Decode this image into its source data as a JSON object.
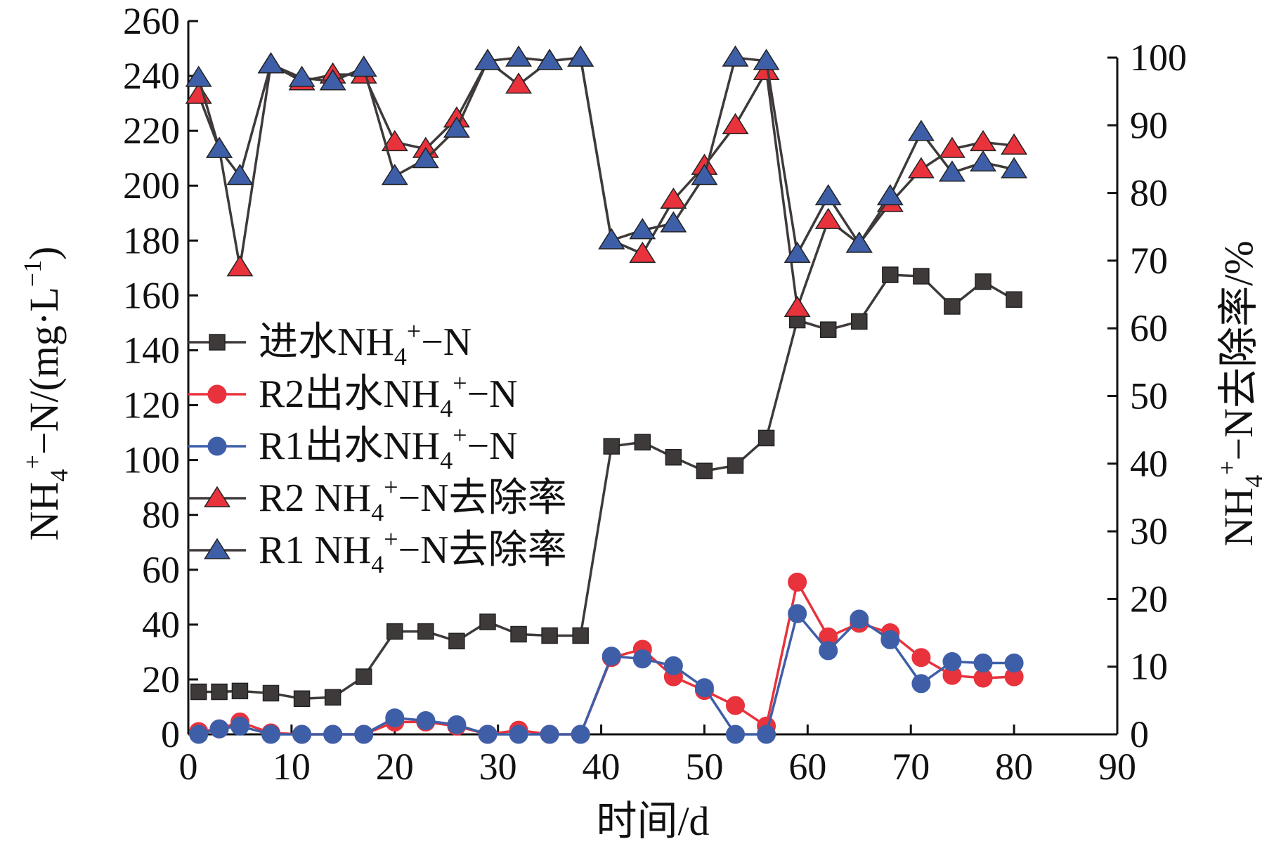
{
  "chart_data": {
    "type": "line",
    "xlabel": "时间/d",
    "ylabel_left": {
      "main": "NH",
      "sub": "4",
      "sup": "+",
      "rest": "−N/(mg·L",
      "sup2": "−1",
      "end": ")"
    },
    "ylabel_right": {
      "main": "NH",
      "sub": "4",
      "sup": "+",
      "rest": "−N去除率/%"
    },
    "xlim": [
      0,
      90
    ],
    "xticks": [
      0,
      10,
      20,
      30,
      40,
      50,
      60,
      70,
      80,
      90
    ],
    "ylim_left": [
      0,
      260
    ],
    "yticks_left": [
      0,
      20,
      40,
      60,
      80,
      100,
      120,
      140,
      160,
      180,
      200,
      220,
      240,
      260
    ],
    "ylim_right": [
      0,
      100
    ],
    "yticks_right": [
      0,
      10,
      20,
      30,
      40,
      50,
      60,
      70,
      80,
      90,
      100
    ],
    "legend_position": "center-left",
    "series": [
      {
        "id": "influent",
        "legend": {
          "pre": "进水NH",
          "sub": "4",
          "sup": "+",
          "post": "−N"
        },
        "axis": "left",
        "marker": "square",
        "color": "#3f3a3a",
        "line_color": "#3f3a3a",
        "x": [
          1,
          3,
          5,
          8,
          11,
          14,
          17,
          20,
          23,
          26,
          29,
          32,
          35,
          38,
          41,
          44,
          47,
          50,
          53,
          56,
          59,
          62,
          65,
          68,
          71,
          74,
          77,
          80
        ],
        "y": [
          15.5,
          15.5,
          15.8,
          15,
          13,
          13.5,
          21,
          37.5,
          37.5,
          34,
          41,
          36.5,
          36,
          36,
          105,
          106.5,
          101,
          96,
          98,
          108,
          151,
          147.5,
          150.5,
          167.5,
          167,
          156,
          165,
          158.5
        ]
      },
      {
        "id": "r2-effluent",
        "legend": {
          "pre": "R2出水NH",
          "sub": "4",
          "sup": "+",
          "post": "−N"
        },
        "axis": "left",
        "marker": "circle",
        "color": "#e8323c",
        "line_color": "#e8323c",
        "x": [
          1,
          3,
          5,
          8,
          11,
          14,
          17,
          20,
          23,
          26,
          29,
          32,
          35,
          38,
          41,
          44,
          47,
          50,
          53,
          56,
          59,
          62,
          65,
          68,
          71,
          74,
          77,
          80
        ],
        "y": [
          1,
          2,
          4.5,
          0.5,
          0,
          0,
          0,
          4.5,
          4.5,
          3,
          0,
          1.5,
          0,
          0,
          28,
          31,
          21,
          16,
          10.5,
          3,
          55.5,
          35.5,
          40.5,
          37,
          28,
          21.5,
          20.5,
          21
        ]
      },
      {
        "id": "r1-effluent",
        "legend": {
          "pre": "R1出水NH",
          "sub": "4",
          "sup": "+",
          "post": "−N"
        },
        "axis": "left",
        "marker": "circle",
        "color": "#3e5fa8",
        "line_color": "#3e5fa8",
        "x": [
          1,
          3,
          5,
          8,
          11,
          14,
          17,
          20,
          23,
          26,
          29,
          32,
          35,
          38,
          41,
          44,
          47,
          50,
          53,
          56,
          59,
          62,
          65,
          68,
          71,
          74,
          77,
          80
        ],
        "y": [
          0,
          2,
          3,
          0,
          0,
          0,
          0,
          6,
          5,
          3.5,
          0,
          0,
          0,
          0,
          28.5,
          27.5,
          25,
          17,
          0,
          0,
          44,
          30.5,
          42,
          34.5,
          18.5,
          26.5,
          26,
          26
        ]
      },
      {
        "id": "r2-removal",
        "legend": {
          "pre": "R2 NH",
          "sub": "4",
          "sup": "+",
          "post": "−N去除率"
        },
        "axis": "right",
        "marker": "triangle",
        "color": "#e8323c",
        "line_color": "#3f3a3a",
        "x": [
          1,
          3,
          5,
          8,
          11,
          14,
          17,
          20,
          23,
          26,
          29,
          32,
          35,
          38,
          41,
          44,
          47,
          50,
          53,
          56,
          59,
          62,
          65,
          68,
          71,
          74,
          77,
          80
        ],
        "y": [
          94.5,
          86.5,
          69,
          99,
          96.5,
          97.5,
          97.5,
          87.5,
          86.5,
          91,
          99.5,
          96,
          99.5,
          100,
          73,
          71,
          79,
          84,
          90,
          98,
          63,
          76,
          72.5,
          78.5,
          83.5,
          86.5,
          87.5,
          87
        ]
      },
      {
        "id": "r1-removal",
        "legend": {
          "pre": "R1 NH",
          "sub": "4",
          "sup": "+",
          "post": "−N去除率"
        },
        "axis": "right",
        "marker": "triangle",
        "color": "#3e5fa8",
        "line_color": "#3f3a3a",
        "x": [
          1,
          3,
          5,
          8,
          11,
          14,
          17,
          20,
          23,
          26,
          29,
          32,
          35,
          38,
          41,
          44,
          47,
          50,
          53,
          56,
          59,
          62,
          65,
          68,
          71,
          74,
          77,
          80
        ],
        "y": [
          97,
          86.5,
          82.5,
          99,
          97,
          96.5,
          98.5,
          82.5,
          85,
          89.5,
          99.5,
          100,
          99.5,
          100,
          73,
          74.5,
          75.5,
          82.5,
          100,
          99.5,
          71,
          79.5,
          72.5,
          79.5,
          89,
          83,
          84.5,
          83.5
        ]
      }
    ]
  }
}
